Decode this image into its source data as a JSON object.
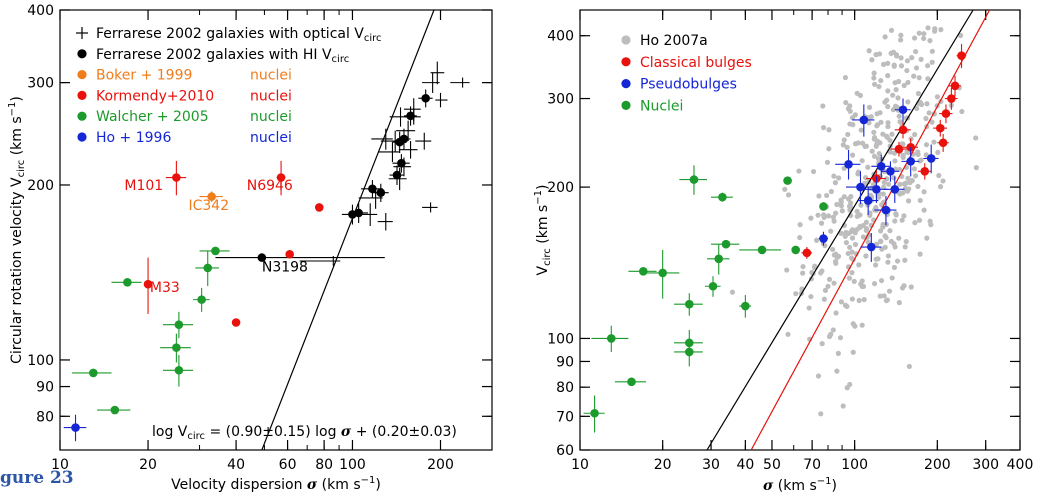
{
  "figure_label": "gure 23",
  "colors": {
    "black": "#000000",
    "orange": "#f07d1c",
    "red": "#e8110c",
    "green": "#1c9a2c",
    "blue": "#1426d6",
    "grey": "#bdbdbd"
  },
  "chart_data": [
    {
      "type": "scatter",
      "title": "",
      "xscale": "log",
      "yscale": "log",
      "xlim": [
        10,
        300
      ],
      "ylim": [
        70,
        400
      ],
      "xticks": [
        10,
        20,
        40,
        60,
        80,
        100,
        200
      ],
      "xticklabels": [
        "10",
        "20",
        "40",
        "60",
        "80",
        "100",
        "200"
      ],
      "yticks": [
        80,
        90,
        100,
        200,
        300,
        400
      ],
      "yticklabels": [
        "80",
        "90",
        "100",
        "200",
        "300",
        "400"
      ],
      "xlabel": {
        "pre": "Velocity dispersion ",
        "sym": "σ",
        "post": " (km s",
        "sup": "−1",
        "end": ")"
      },
      "ylabel": {
        "pre": "Circular rotation velocity V",
        "sub": "circ",
        "post": "   (km s",
        "sup": "−1",
        "end": ")"
      },
      "legend_position": "top-left",
      "legend": [
        {
          "marker": "cross",
          "color": "black",
          "text": "Ferrarese 2002 galaxies with optical V",
          "sub": "circ",
          "tag": ""
        },
        {
          "marker": "dot",
          "color": "black",
          "text": "Ferrarese 2002 galaxies with HI V",
          "sub": "circ",
          "tag": ""
        },
        {
          "marker": "dot",
          "color": "orange",
          "text": "Boker + 1999",
          "sub": "",
          "tag": "nuclei"
        },
        {
          "marker": "dot",
          "color": "red",
          "text": "Kormendy+2010",
          "sub": "",
          "tag": "nuclei"
        },
        {
          "marker": "dot",
          "color": "green",
          "text": "Walcher + 2005",
          "sub": "",
          "tag": "nuclei"
        },
        {
          "marker": "dot",
          "color": "blue",
          "text": "Ho + 1996",
          "sub": "",
          "tag": "nuclei"
        }
      ],
      "equation": {
        "a": "log V",
        "sub": "circ",
        "b": "  =  (0.90±0.15) log ",
        "sym": "σ",
        "c": " + (0.20±0.03)"
      },
      "fit_lines": [
        {
          "color": "black",
          "x": [
            49,
            190
          ],
          "y": [
            70,
            400
          ]
        }
      ],
      "labels": [
        {
          "text": "M101",
          "color": "red",
          "x": 16.6,
          "y": 196
        },
        {
          "text": "N6946",
          "color": "red",
          "x": 43.5,
          "y": 196
        },
        {
          "text": "IC342",
          "color": "orange",
          "x": 27.5,
          "y": 181
        },
        {
          "text": "N3198",
          "color": "black",
          "x": 49,
          "y": 142
        },
        {
          "text": "M33",
          "color": "red",
          "x": 20.3,
          "y": 131
        }
      ],
      "series": [
        {
          "name": "Ferrarese 2002 galaxies with optical Vcirc",
          "marker": "cross",
          "color": "black",
          "points": [
            [
              86,
              148,
              20,
              0,
              0,
              0
            ],
            [
              115,
              178,
              12,
              0,
              8,
              8
            ],
            [
              120,
              190,
              15,
              0,
              8,
              8
            ],
            [
              130,
              173,
              8,
              0,
              6,
              6
            ],
            [
              137,
              228,
              14,
              0,
              9,
              9
            ],
            [
              130,
              240,
              14,
              0,
              10,
              10
            ],
            [
              140,
              238,
              15,
              0,
              10,
              10
            ],
            [
              146,
              262,
              12,
              0,
              10,
              10
            ],
            [
              155,
              248,
              14,
              0,
              10,
              10
            ],
            [
              162,
              262,
              12,
              0,
              8,
              8
            ],
            [
              176,
              238,
              12,
              0,
              8,
              8
            ],
            [
              158,
              230,
              14,
              0,
              8,
              8
            ],
            [
              162,
              270,
              12,
              0,
              12,
              12
            ],
            [
              185,
              183,
              12,
              0,
              0,
              0
            ],
            [
              188,
              300,
              15,
              0,
              12,
              12
            ],
            [
              195,
              312,
              10,
              0,
              14,
              14
            ],
            [
              200,
              280,
              8,
              0,
              8,
              8
            ],
            [
              238,
              300,
              22,
              0,
              0,
              0
            ],
            [
              145,
              205,
              12,
              0,
              9,
              9
            ],
            [
              150,
              215,
              12,
              0,
              8,
              8
            ]
          ]
        },
        {
          "name": "Ferrarese 2002 galaxies with HI Vcirc",
          "marker": "dot",
          "color": "black",
          "points": [
            [
              49,
              150,
              15,
              80,
              0,
              0
            ],
            [
              100,
              178,
              8,
              8,
              7,
              7
            ],
            [
              105,
              179,
              8,
              8,
              7,
              7
            ],
            [
              117,
              197,
              10,
              10,
              7,
              7
            ],
            [
              125,
              194,
              8,
              8,
              7,
              7
            ],
            [
              142,
              208,
              8,
              8,
              8,
              8
            ],
            [
              147,
              218,
              10,
              10,
              8,
              8
            ],
            [
              145,
              237,
              8,
              8,
              10,
              10
            ],
            [
              150,
              240,
              8,
              8,
              10,
              10
            ],
            [
              158,
              263,
              8,
              8,
              10,
              10
            ],
            [
              178,
              282,
              10,
              10,
              10,
              10
            ]
          ]
        },
        {
          "name": "Boker + 1999",
          "marker": "dot",
          "color": "orange",
          "points": [
            [
              33,
              191,
              3,
              3,
              4,
              4
            ]
          ]
        },
        {
          "name": "Kormendy+2010",
          "marker": "dot",
          "color": "red",
          "points": [
            [
              25,
              206,
              2,
              2,
              14,
              14
            ],
            [
              57,
              206,
              2,
              2,
              14,
              14
            ],
            [
              20,
              135,
              0,
              0,
              15,
              15
            ],
            [
              77,
              183,
              0,
              0,
              0,
              0
            ],
            [
              61,
              152,
              0,
              0,
              0,
              0
            ],
            [
              40,
              116,
              0,
              0,
              0,
              0
            ]
          ]
        },
        {
          "name": "Walcher + 2005",
          "marker": "dot",
          "color": "green",
          "points": [
            [
              13,
              95,
              2,
              2,
              0,
              0
            ],
            [
              15.4,
              82,
              2,
              2,
              0,
              0
            ],
            [
              17,
              136,
              2,
              2,
              0,
              0
            ],
            [
              25.5,
              115,
              3,
              3,
              6,
              6
            ],
            [
              25,
              105,
              3,
              3,
              6,
              6
            ],
            [
              25.5,
              96,
              3,
              3,
              6,
              6
            ],
            [
              30.5,
              127,
              2,
              2,
              6,
              6
            ],
            [
              32,
              144,
              3,
              3,
              10,
              10
            ],
            [
              34,
              154,
              4,
              4,
              0,
              0
            ]
          ]
        },
        {
          "name": "Ho + 1996",
          "marker": "dot",
          "color": "blue",
          "points": [
            [
              11.3,
              76.5,
              1,
              1,
              4,
              4
            ]
          ]
        }
      ]
    },
    {
      "type": "scatter",
      "title": "",
      "xscale": "log",
      "yscale": "log",
      "xlim": [
        10,
        400
      ],
      "ylim": [
        60,
        450
      ],
      "xticks": [
        10,
        20,
        30,
        40,
        50,
        70,
        100,
        200,
        300,
        400
      ],
      "xticklabels": [
        "10",
        "20",
        "30",
        "40",
        "50",
        "70",
        "100",
        "200",
        "300",
        "400"
      ],
      "yticks": [
        60,
        70,
        80,
        90,
        100,
        200,
        300,
        400
      ],
      "yticklabels": [
        "60",
        "70",
        "80",
        "90",
        "100",
        "200",
        "300",
        "400"
      ],
      "xlabel": {
        "pre": "",
        "sym": "σ",
        "post": "     (km s",
        "sup": "−1",
        "end": ")"
      },
      "ylabel": {
        "pre": "V",
        "sub": "circ",
        "post": "   (km s",
        "sup": "−1",
        "end": ")"
      },
      "legend_position": "top-left",
      "legend": [
        {
          "marker": "dot",
          "color": "grey",
          "text": "Ho 2007a",
          "sub": "",
          "tag": ""
        },
        {
          "marker": "dot",
          "color": "red",
          "text": "Classical bulges",
          "sub": "",
          "tag": ""
        },
        {
          "marker": "dot",
          "color": "blue",
          "text": "Pseudobulges",
          "sub": "",
          "tag": ""
        },
        {
          "marker": "dot",
          "color": "green",
          "text": "Nuclei",
          "sub": "",
          "tag": ""
        }
      ],
      "fit_lines": [
        {
          "color": "black",
          "x": [
            29,
            270
          ],
          "y": [
            60,
            450
          ]
        },
        {
          "color": "red",
          "x": [
            42,
            310
          ],
          "y": [
            60,
            450
          ]
        }
      ],
      "grey_cloud": {
        "center_log_sigma": 2.08,
        "center_log_v": 2.31,
        "spread_sigma": 0.13,
        "spread_v": 0.15,
        "count": 430,
        "x_range": [
          35,
          320
        ],
        "y_range": [
          62,
          420
        ]
      },
      "series": [
        {
          "name": "Classical bulges",
          "marker": "dot",
          "color": "red",
          "points": [
            [
              67,
              148,
              3,
              3,
              4,
              4
            ],
            [
              120,
              208,
              10,
              10,
              8,
              8
            ],
            [
              145,
              238,
              10,
              10,
              8,
              8
            ],
            [
              160,
              240,
              10,
              10,
              10,
              10
            ],
            [
              180,
              215,
              10,
              10,
              8,
              8
            ],
            [
              205,
              262,
              12,
              12,
              10,
              10
            ],
            [
              215,
              280,
              12,
              12,
              12,
              12
            ],
            [
              225,
              300,
              12,
              12,
              15,
              15
            ],
            [
              232,
              318,
              12,
              12,
              15,
              15
            ],
            [
              245,
              365,
              10,
              10,
              20,
              20
            ],
            [
              210,
              245,
              10,
              10,
              10,
              10
            ],
            [
              150,
              260,
              10,
              10,
              10,
              10
            ]
          ]
        },
        {
          "name": "Pseudobulges",
          "marker": "dot",
          "color": "blue",
          "points": [
            [
              77,
              158,
              3,
              3,
              5,
              5
            ],
            [
              95,
              222,
              10,
              10,
              15,
              15
            ],
            [
              105,
              200,
              12,
              12,
              15,
              15
            ],
            [
              108,
              272,
              10,
              10,
              20,
              20
            ],
            [
              112,
              188,
              10,
              10,
              12,
              12
            ],
            [
              115,
              152,
              10,
              10,
              10,
              10
            ],
            [
              120,
              198,
              12,
              12,
              12,
              12
            ],
            [
              125,
              220,
              10,
              10,
              12,
              12
            ],
            [
              130,
              180,
              12,
              12,
              12,
              12
            ],
            [
              140,
              198,
              12,
              12,
              12,
              12
            ],
            [
              150,
              285,
              10,
              10,
              15,
              15
            ],
            [
              160,
              225,
              12,
              12,
              15,
              15
            ],
            [
              190,
              228,
              12,
              12,
              15,
              15
            ],
            [
              135,
              215,
              10,
              10,
              10,
              10
            ]
          ]
        },
        {
          "name": "Nuclei",
          "marker": "dot",
          "color": "green",
          "points": [
            [
              11.3,
              71,
              1,
              1,
              6,
              6
            ],
            [
              13,
              100,
              2,
              2,
              6,
              6
            ],
            [
              15.4,
              82,
              2,
              2,
              0,
              0
            ],
            [
              17,
              136,
              2,
              2,
              0,
              0
            ],
            [
              20,
              135,
              3,
              3,
              15,
              15
            ],
            [
              25,
              117,
              3,
              3,
              6,
              6
            ],
            [
              25,
              98,
              3,
              3,
              6,
              6
            ],
            [
              25,
              94,
              3,
              3,
              6,
              6
            ],
            [
              26,
              207,
              3,
              3,
              14,
              14
            ],
            [
              30.5,
              127,
              2,
              2,
              6,
              6
            ],
            [
              32,
              144,
              3,
              3,
              10,
              10
            ],
            [
              33,
              191,
              3,
              3,
              4,
              4
            ],
            [
              34,
              154,
              4,
              4,
              0,
              0
            ],
            [
              40,
              116,
              2,
              2,
              6,
              6
            ],
            [
              46,
              150,
              8,
              8,
              0,
              0
            ],
            [
              57,
              206,
              2,
              2,
              0,
              0
            ],
            [
              61,
              150,
              2,
              2,
              0,
              0
            ],
            [
              77,
              183,
              0,
              0,
              0,
              0
            ]
          ]
        }
      ]
    }
  ]
}
